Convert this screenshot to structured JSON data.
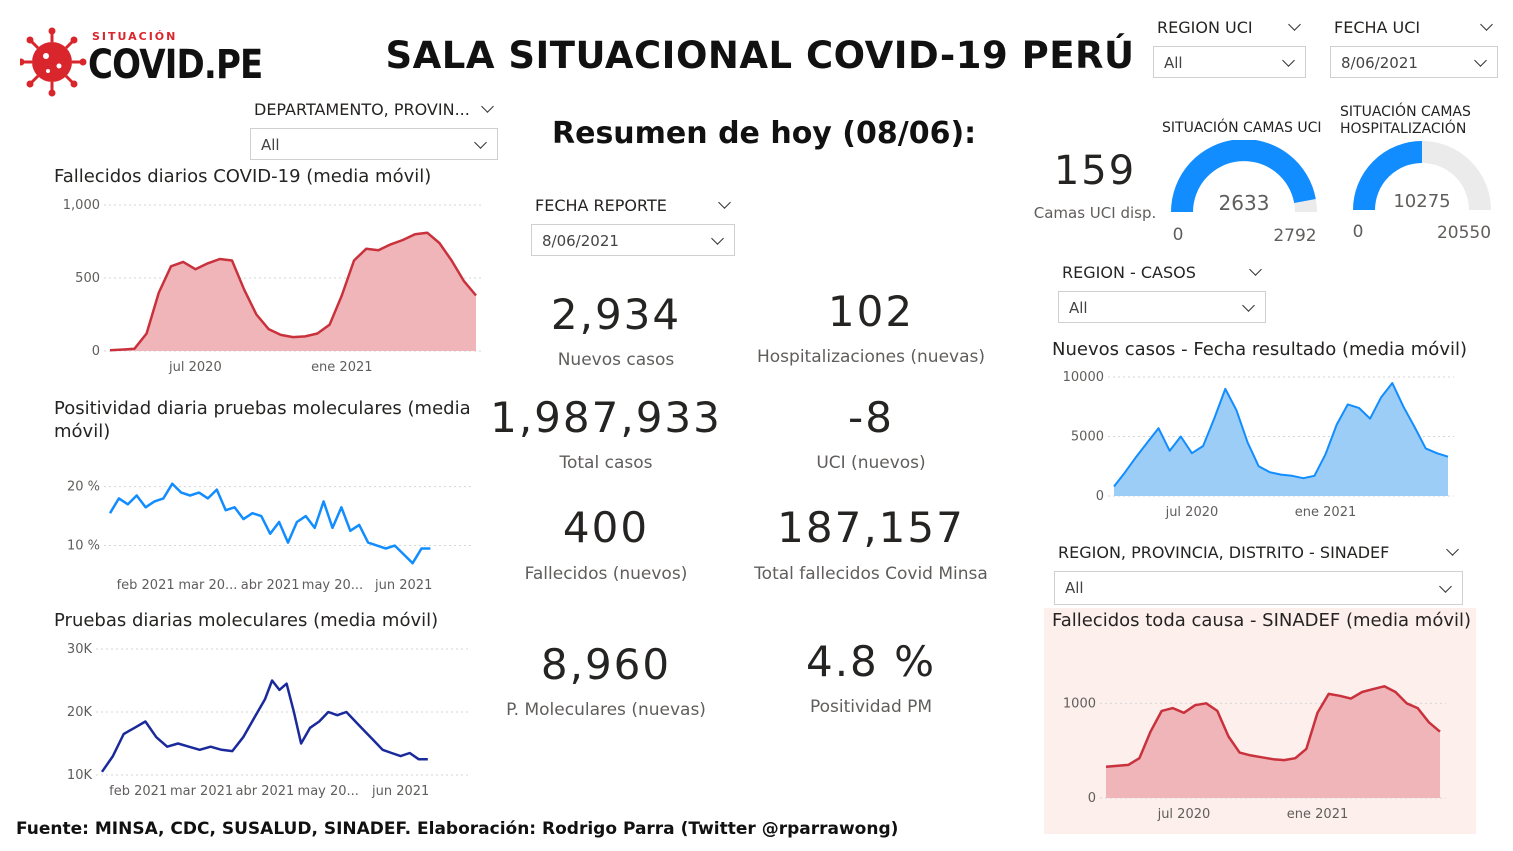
{
  "header": {
    "logo_small": "SITUACIÓN",
    "logo_big": "COVID.PE",
    "title": "SALA SITUACIONAL COVID-19 PERÚ"
  },
  "slicers": {
    "region_uci": {
      "label": "REGION UCI",
      "value": "All"
    },
    "fecha_uci": {
      "label": "FECHA UCI",
      "value": "8/06/2021"
    },
    "departamento": {
      "label": "DEPARTAMENTO, PROVIN...",
      "value": "All"
    },
    "fecha_reporte": {
      "label": "FECHA REPORTE",
      "value": "8/06/2021"
    },
    "region_casos": {
      "label": "REGION - CASOS",
      "value": "All"
    },
    "region_sinadef": {
      "label": "REGION, PROVINCIA, DISTRITO - SINADEF",
      "value": "All"
    }
  },
  "summary": {
    "title": "Resumen de hoy (08/06):",
    "kpis": [
      {
        "value": "2,934",
        "label": "Nuevos casos"
      },
      {
        "value": "102",
        "label": "Hospitalizaciones (nuevas)"
      },
      {
        "value": "1,987,933",
        "label": "Total casos"
      },
      {
        "value": "-8",
        "label": "UCI (nuevos)"
      },
      {
        "value": "400",
        "label": "Fallecidos  (nuevos)"
      },
      {
        "value": "187,157",
        "label": "Total fallecidos Covid Minsa"
      },
      {
        "value": "8,960",
        "label": "P. Moleculares (nuevas)"
      },
      {
        "value": "4.8 %",
        "label": "Positividad PM"
      }
    ]
  },
  "uci": {
    "camas_disp_value": "159",
    "camas_disp_label": "Camas UCI disp.",
    "gauge_uci": {
      "title": "SITUACIÓN CAMAS UCI",
      "value": 2633,
      "value_label": "2633",
      "min": "0",
      "max": "2792",
      "max_num": 2792
    },
    "gauge_hosp": {
      "title_line1": "SITUACIÓN CAMAS",
      "title_line2": "HOSPITALIZACIÓN",
      "value": 10275,
      "value_label": "10275",
      "min": "0",
      "max": "20550",
      "max_num": 20550
    }
  },
  "footer": {
    "text": "Fuente: MINSA, CDC, SUSALUD, SINADEF. Elaboración: Rodrigo Parra (Twitter @rparrawong)"
  },
  "colors": {
    "red_line": "#c9323c",
    "red_fill": "#f0b5b9",
    "blue_line": "#118dff",
    "blue_fill": "#9ccdf7",
    "navy_line": "#1a2a9b",
    "gauge_fill": "#118dff",
    "gauge_bg": "#ebebeb",
    "sinadef_bg": "#fdefec"
  },
  "chart_data": [
    {
      "id": "fallecidos",
      "type": "area",
      "title": "Fallecidos diarios COVID-19 (media móvil)",
      "ylim": [
        0,
        1000
      ],
      "yticks": [
        0,
        500,
        1000
      ],
      "ytick_labels": [
        "0",
        "500",
        "1,000"
      ],
      "xlim": [
        0,
        15
      ],
      "xticks": [
        {
          "x": 3.5,
          "label": "jul 2020"
        },
        {
          "x": 9.5,
          "label": "ene 2021"
        }
      ],
      "x": [
        0,
        1,
        1.5,
        2,
        2.5,
        3,
        3.5,
        4,
        4.5,
        5,
        5.5,
        6,
        6.5,
        7,
        7.5,
        8,
        8.5,
        9,
        9.5,
        10,
        10.5,
        11,
        11.5,
        12,
        12.5,
        13,
        13.5,
        14,
        14.5,
        15
      ],
      "values": [
        5,
        15,
        120,
        400,
        580,
        610,
        560,
        600,
        630,
        620,
        420,
        250,
        150,
        110,
        95,
        100,
        120,
        180,
        380,
        620,
        700,
        690,
        730,
        760,
        800,
        810,
        740,
        620,
        480,
        380
      ]
    },
    {
      "id": "positividad",
      "type": "line",
      "title": "Positividad diaria pruebas moleculares (media móvil)",
      "ylim": [
        5,
        23
      ],
      "yticks": [
        10,
        20
      ],
      "ytick_labels": [
        "10 %",
        "20 %"
      ],
      "xlim": [
        0,
        20
      ],
      "xticks": [
        {
          "x": 2,
          "label": "feb 2021"
        },
        {
          "x": 5.5,
          "label": "mar 20..."
        },
        {
          "x": 9,
          "label": "abr 2021"
        },
        {
          "x": 12.5,
          "label": "may 20..."
        },
        {
          "x": 16.5,
          "label": "jun 2021"
        }
      ],
      "x": [
        0,
        0.5,
        1,
        1.5,
        2,
        2.5,
        3,
        3.5,
        4,
        4.5,
        5,
        5.5,
        6,
        6.5,
        7,
        7.5,
        8,
        8.5,
        9,
        9.5,
        10,
        10.5,
        11,
        11.5,
        12,
        12.5,
        13,
        13.5,
        14,
        14.5,
        15,
        15.5,
        16,
        16.5,
        17,
        17.5,
        18
      ],
      "values": [
        15.5,
        18,
        17,
        18.5,
        16.5,
        17.5,
        18,
        20.5,
        19,
        18.5,
        19,
        18,
        19.5,
        16,
        16.5,
        14.5,
        15.5,
        15,
        12,
        14,
        10.5,
        14,
        15,
        13,
        17.5,
        13,
        16.5,
        12.5,
        13.5,
        10.5,
        10,
        9.5,
        10,
        8.5,
        7,
        9.5,
        9.5
      ]
    },
    {
      "id": "pruebas",
      "type": "line",
      "title": "Pruebas diarias moleculares (media móvil)",
      "ylim": [
        10000,
        30000
      ],
      "yticks": [
        10000,
        20000,
        30000
      ],
      "ytick_labels": [
        "10K",
        "20K",
        "30K"
      ],
      "xlim": [
        0,
        20
      ],
      "xticks": [
        {
          "x": 2,
          "label": "feb 2021"
        },
        {
          "x": 5.5,
          "label": "mar 2021"
        },
        {
          "x": 9,
          "label": "abr 2021"
        },
        {
          "x": 12.5,
          "label": "may 20..."
        },
        {
          "x": 16.5,
          "label": "jun 2021"
        }
      ],
      "x": [
        0,
        0.6,
        1.2,
        1.8,
        2.4,
        3,
        3.6,
        4.2,
        4.8,
        5.4,
        6,
        6.6,
        7.2,
        7.8,
        8.4,
        9,
        9.4,
        9.8,
        10.2,
        10.6,
        11,
        11.5,
        12,
        12.5,
        13,
        13.5,
        14,
        14.5,
        15,
        15.5,
        16,
        16.5,
        17,
        17.5,
        18
      ],
      "values": [
        10500,
        13000,
        16500,
        17500,
        18500,
        16000,
        14500,
        15000,
        14500,
        14000,
        14500,
        14000,
        13800,
        16000,
        19000,
        22000,
        25000,
        23500,
        24500,
        20000,
        15000,
        17500,
        18500,
        20000,
        19500,
        20000,
        18500,
        17000,
        15500,
        14000,
        13500,
        13000,
        13500,
        12500,
        12500
      ]
    },
    {
      "id": "nuevos_casos",
      "type": "area",
      "title": "Nuevos casos - Fecha resultado (media móvil)",
      "ylim": [
        0,
        10000
      ],
      "yticks": [
        0,
        5000,
        10000
      ],
      "ytick_labels": [
        "0",
        "5000",
        "10000"
      ],
      "xlim": [
        0,
        15
      ],
      "xticks": [
        {
          "x": 3.5,
          "label": "jul 2020"
        },
        {
          "x": 9.5,
          "label": "ene 2021"
        }
      ],
      "x": [
        0,
        0.5,
        1,
        1.5,
        2,
        2.5,
        3,
        3.5,
        4,
        4.5,
        5,
        5.5,
        6,
        6.5,
        7,
        7.5,
        8,
        8.5,
        9,
        9.5,
        10,
        10.5,
        11,
        11.5,
        12,
        12.5,
        13,
        13.5,
        14,
        14.5,
        15
      ],
      "values": [
        800,
        2000,
        3300,
        4500,
        5700,
        3800,
        5000,
        3600,
        4200,
        6500,
        9000,
        7200,
        4500,
        2500,
        2000,
        1800,
        1700,
        1500,
        1700,
        3500,
        6000,
        7700,
        7400,
        6500,
        8300,
        9500,
        7500,
        5800,
        4000,
        3600,
        3300
      ]
    },
    {
      "id": "sinadef",
      "type": "area",
      "title": "Fallecidos toda causa - SINADEF (media móvil)",
      "ylim": [
        0,
        1500
      ],
      "yticks": [
        0,
        1000
      ],
      "ytick_labels": [
        "0",
        "1000"
      ],
      "xlim": [
        0,
        15
      ],
      "xticks": [
        {
          "x": 3.5,
          "label": "jul 2020"
        },
        {
          "x": 9.5,
          "label": "ene 2021"
        }
      ],
      "x": [
        0,
        1,
        1.5,
        2,
        2.5,
        3,
        3.5,
        4,
        4.5,
        5,
        5.5,
        6,
        6.5,
        7,
        7.5,
        8,
        8.5,
        9,
        9.5,
        10,
        10.5,
        11,
        11.5,
        12,
        12.5,
        13,
        13.5,
        14,
        14.5,
        15
      ],
      "values": [
        330,
        350,
        420,
        700,
        920,
        950,
        900,
        980,
        1000,
        920,
        650,
        480,
        450,
        430,
        410,
        400,
        420,
        520,
        900,
        1100,
        1080,
        1050,
        1120,
        1150,
        1180,
        1120,
        1000,
        950,
        800,
        700
      ]
    }
  ]
}
